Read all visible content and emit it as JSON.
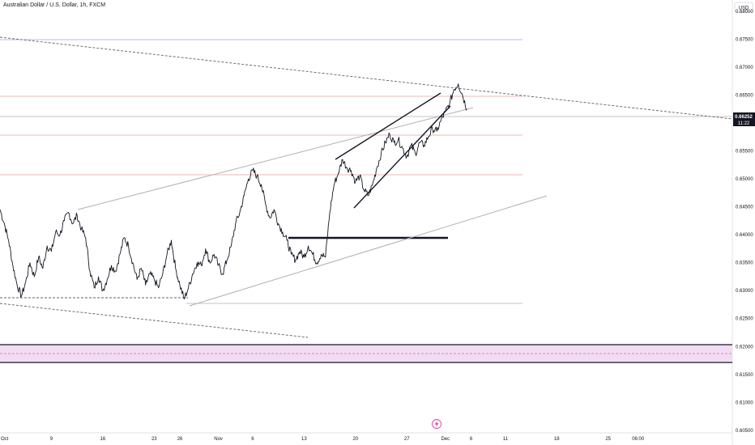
{
  "chart_title": "Australian Dollar / U.S. Dollar, 1h, FXCM",
  "currency_label": "USD",
  "last_price": "0.66252",
  "countdown": "11:22",
  "colors": {
    "price_line": "#131722",
    "background": "#ffffff",
    "grid_red": "#e8a0a0",
    "grid_blue": "#a0a8e8",
    "grid_gray": "#b0b0b0",
    "zone_fill": "#f3dcf3",
    "zone_dash": "#c070c0",
    "price_tag_bg": "#131722"
  },
  "chart_data": {
    "type": "line",
    "ylim": [
      0.60455,
      0.682
    ],
    "xlim": [
      0,
      171
    ],
    "y_ticks": [
      "0.68000",
      "0.67500",
      "0.67000",
      "0.66500",
      "0.66000",
      "0.65500",
      "0.65000",
      "0.64500",
      "0.64000",
      "0.63500",
      "0.63000",
      "0.62500",
      "0.62000",
      "0.61500",
      "0.61000",
      "0.60500"
    ],
    "x_ticks": [
      {
        "label": "Oct",
        "x": 0
      },
      {
        "label": "9",
        "x": 12
      },
      {
        "label": "16",
        "x": 24
      },
      {
        "label": "23",
        "x": 36
      },
      {
        "label": "26",
        "x": 42
      },
      {
        "label": "Nov",
        "x": 51
      },
      {
        "label": "6",
        "x": 59
      },
      {
        "label": "13",
        "x": 71
      },
      {
        "label": "20",
        "x": 83
      },
      {
        "label": "27",
        "x": 95
      },
      {
        "label": "Dec",
        "x": 104
      },
      {
        "label": "6",
        "x": 110
      },
      {
        "label": "11",
        "x": 118
      },
      {
        "label": "18",
        "x": 130
      },
      {
        "label": "25",
        "x": 142
      },
      {
        "label": "06:00",
        "x": 149
      }
    ],
    "series": [
      {
        "values": [
          [
            0,
            0.6445
          ],
          [
            1,
            0.642
          ],
          [
            2,
            0.639
          ],
          [
            3,
            0.6345
          ],
          [
            4,
            0.631
          ],
          [
            5,
            0.629
          ],
          [
            6,
            0.6315
          ],
          [
            7,
            0.635
          ],
          [
            8,
            0.6325
          ],
          [
            9,
            0.636
          ],
          [
            10,
            0.634
          ],
          [
            11,
            0.638
          ],
          [
            12,
            0.637
          ],
          [
            13,
            0.6405
          ],
          [
            14,
            0.64
          ],
          [
            15,
            0.6425
          ],
          [
            16,
            0.644
          ],
          [
            17,
            0.642
          ],
          [
            18,
            0.6435
          ],
          [
            19,
            0.641
          ],
          [
            20,
            0.6395
          ],
          [
            21,
            0.6335
          ],
          [
            22,
            0.6305
          ],
          [
            23,
            0.6325
          ],
          [
            24,
            0.63
          ],
          [
            25,
            0.632
          ],
          [
            26,
            0.6345
          ],
          [
            27,
            0.6335
          ],
          [
            28,
            0.6365
          ],
          [
            29,
            0.6395
          ],
          [
            30,
            0.638
          ],
          [
            31,
            0.635
          ],
          [
            32,
            0.632
          ],
          [
            33,
            0.634
          ],
          [
            34,
            0.631
          ],
          [
            35,
            0.633
          ],
          [
            36,
            0.632
          ],
          [
            37,
            0.6305
          ],
          [
            38,
            0.633
          ],
          [
            39,
            0.6365
          ],
          [
            40,
            0.639
          ],
          [
            41,
            0.634
          ],
          [
            42,
            0.631
          ],
          [
            43,
            0.6285
          ],
          [
            44,
            0.6305
          ],
          [
            45,
            0.633
          ],
          [
            46,
            0.635
          ],
          [
            47,
            0.6345
          ],
          [
            48,
            0.6375
          ],
          [
            49,
            0.635
          ],
          [
            50,
            0.6365
          ],
          [
            51,
            0.6345
          ],
          [
            52,
            0.633
          ],
          [
            53,
            0.6355
          ],
          [
            54,
            0.638
          ],
          [
            55,
            0.642
          ],
          [
            56,
            0.644
          ],
          [
            57,
            0.647
          ],
          [
            58,
            0.65
          ],
          [
            59,
            0.6515
          ],
          [
            60,
            0.6505
          ],
          [
            61,
            0.649
          ],
          [
            62,
            0.6455
          ],
          [
            63,
            0.643
          ],
          [
            64,
            0.6445
          ],
          [
            65,
            0.642
          ],
          [
            66,
            0.6405
          ],
          [
            67,
            0.639
          ],
          [
            68,
            0.6365
          ],
          [
            69,
            0.6355
          ],
          [
            70,
            0.637
          ],
          [
            71,
            0.636
          ],
          [
            72,
            0.638
          ],
          [
            73,
            0.6365
          ],
          [
            74,
            0.635
          ],
          [
            75,
            0.6365
          ],
          [
            76,
            0.636
          ],
          [
            77,
            0.644
          ],
          [
            78,
            0.649
          ],
          [
            79,
            0.651
          ],
          [
            80,
            0.6535
          ],
          [
            81,
            0.652
          ],
          [
            82,
            0.6515
          ],
          [
            83,
            0.6495
          ],
          [
            84,
            0.6505
          ],
          [
            85,
            0.648
          ],
          [
            86,
            0.647
          ],
          [
            87,
            0.649
          ],
          [
            88,
            0.652
          ],
          [
            89,
            0.6545
          ],
          [
            90,
            0.6565
          ],
          [
            91,
            0.658
          ],
          [
            92,
            0.6565
          ],
          [
            93,
            0.657
          ],
          [
            94,
            0.6555
          ],
          [
            95,
            0.654
          ],
          [
            96,
            0.656
          ],
          [
            97,
            0.6545
          ],
          [
            98,
            0.6565
          ],
          [
            99,
            0.656
          ],
          [
            100,
            0.6575
          ],
          [
            101,
            0.659
          ],
          [
            102,
            0.6585
          ],
          [
            103,
            0.6605
          ],
          [
            104,
            0.662
          ],
          [
            105,
            0.6635
          ],
          [
            106,
            0.666
          ],
          [
            107,
            0.667
          ],
          [
            108,
            0.665
          ],
          [
            109,
            0.6625
          ]
        ]
      }
    ],
    "grid": false
  }
}
